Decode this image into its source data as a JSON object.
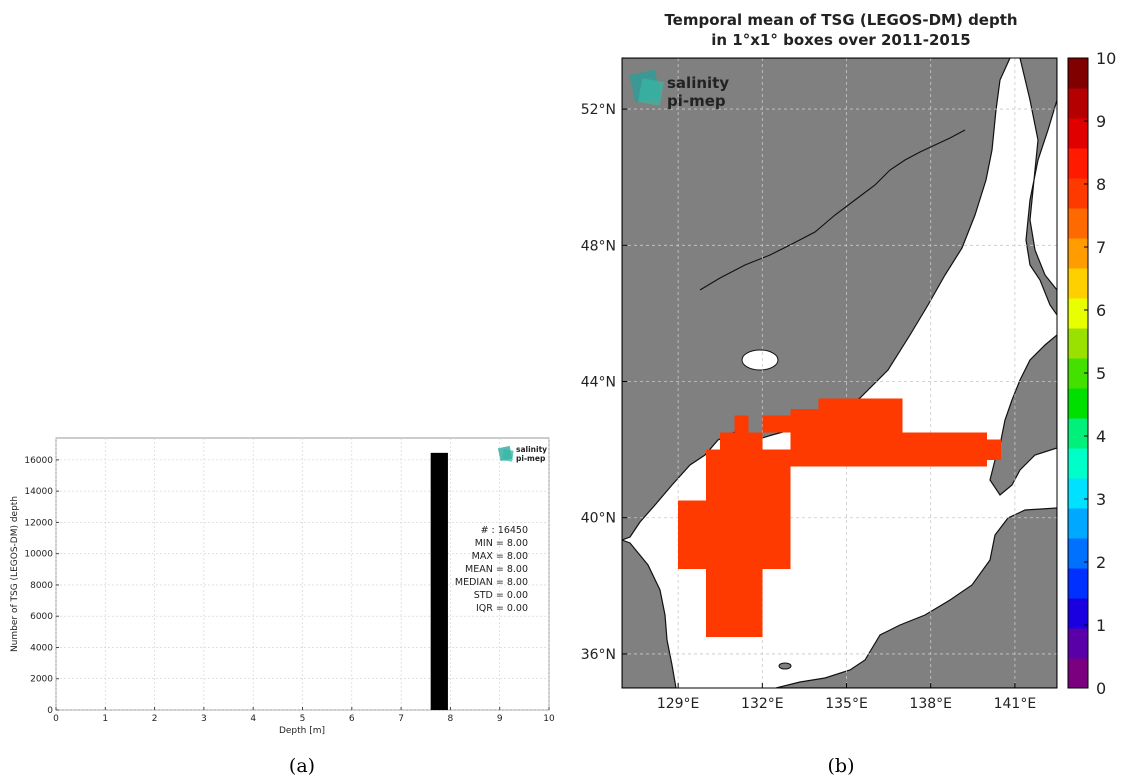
{
  "colors": {
    "land": "#808080",
    "bar": "#000000",
    "box": "#ff3a00",
    "grid": "#d0d0d0"
  },
  "panel_a": {
    "caption": "(a)",
    "logo": {
      "top": "salinity",
      "bottom": "pi-mep"
    },
    "stats": [
      "# : 16450",
      "MIN = 8.00",
      "MAX =  8.00",
      "MEAN = 8.00",
      "MEDIAN = 8.00",
      "STD = 0.00",
      "IQR = 0.00"
    ]
  },
  "panel_b": {
    "caption": "(b)",
    "logo": {
      "top": "salinity",
      "bottom": "pi-mep"
    },
    "lon_ticks": [
      {
        "value": 129,
        "label": "129°E"
      },
      {
        "value": 132,
        "label": "132°E"
      },
      {
        "value": 135,
        "label": "135°E"
      },
      {
        "value": 138,
        "label": "138°E"
      },
      {
        "value": 141,
        "label": "141°E"
      }
    ],
    "lat_ticks": [
      {
        "value": 36,
        "label": "36°N"
      },
      {
        "value": 40,
        "label": "40°N"
      },
      {
        "value": 44,
        "label": "44°N"
      },
      {
        "value": 48,
        "label": "48°N"
      },
      {
        "value": 52,
        "label": "52°N"
      }
    ],
    "colorbar": {
      "min": 0,
      "max": 10,
      "tick_labels": [
        "0",
        "1",
        "2",
        "3",
        "4",
        "5",
        "6",
        "7",
        "8",
        "9",
        "10"
      ],
      "colors": [
        "#7a0080",
        "#5a00a8",
        "#1a00e0",
        "#0030ff",
        "#0070ff",
        "#00a8ff",
        "#00e0ff",
        "#00ffc8",
        "#00f07a",
        "#00e000",
        "#44e000",
        "#9ae000",
        "#e8ff00",
        "#ffd000",
        "#ff9d00",
        "#ff6a00",
        "#ff3a00",
        "#ff1a00",
        "#e00000",
        "#b40000",
        "#800000"
      ]
    }
  },
  "chart_data": [
    {
      "type": "bar",
      "title": "",
      "xlabel": "Depth [m]",
      "ylabel": "Number of TSG (LEGOS-DM) depth",
      "xlim": [
        0,
        10
      ],
      "ylim": [
        0,
        17400
      ],
      "x_ticks": [
        0,
        1,
        2,
        3,
        4,
        5,
        6,
        7,
        8,
        9,
        10
      ],
      "y_ticks": [
        0,
        2000,
        4000,
        6000,
        8000,
        10000,
        12000,
        14000,
        16000
      ],
      "grid": true,
      "bins": [
        {
          "x_start": 7.6,
          "x_end": 7.95,
          "count": 16450
        }
      ]
    },
    {
      "type": "heatmap",
      "title": "Temporal mean of TSG (LEGOS-DM) depth",
      "subtitle": "in 1°x1° boxes over 2011-2015",
      "lon_range": [
        127,
        142.5
      ],
      "lat_range": [
        35,
        53.5
      ],
      "grid": true,
      "colorbar_range": [
        0,
        10
      ],
      "cells": [
        {
          "lon": [
            130.0,
            134.0
          ],
          "lat": [
            41.5,
            42.0
          ],
          "value": 8
        },
        {
          "lon": [
            130.5,
            132.0
          ],
          "lat": [
            42.0,
            42.5
          ],
          "value": 8
        },
        {
          "lon": [
            131.0,
            131.5
          ],
          "lat": [
            42.5,
            43.0
          ],
          "value": 8
        },
        {
          "lon": [
            132.0,
            133.0
          ],
          "lat": [
            42.5,
            43.0
          ],
          "value": 8
        },
        {
          "lon": [
            133.0,
            134.0
          ],
          "lat": [
            42.0,
            43.0
          ],
          "value": 8
        },
        {
          "lon": [
            134.0,
            137.0
          ],
          "lat": [
            42.5,
            43.5
          ],
          "value": 8
        },
        {
          "lon": [
            133.0,
            134.0
          ],
          "lat": [
            43.0,
            43.2
          ],
          "value": 8
        },
        {
          "lon": [
            134.0,
            140.0
          ],
          "lat": [
            41.5,
            42.5
          ],
          "value": 8
        },
        {
          "lon": [
            140.0,
            140.5
          ],
          "lat": [
            41.7,
            42.3
          ],
          "value": 8
        },
        {
          "lon": [
            130.0,
            133.0
          ],
          "lat": [
            38.5,
            41.5
          ],
          "value": 8
        },
        {
          "lon": [
            129.0,
            130.0
          ],
          "lat": [
            38.5,
            40.5
          ],
          "value": 8
        },
        {
          "lon": [
            130.0,
            132.0
          ],
          "lat": [
            36.5,
            38.5
          ],
          "value": 8
        }
      ]
    }
  ]
}
